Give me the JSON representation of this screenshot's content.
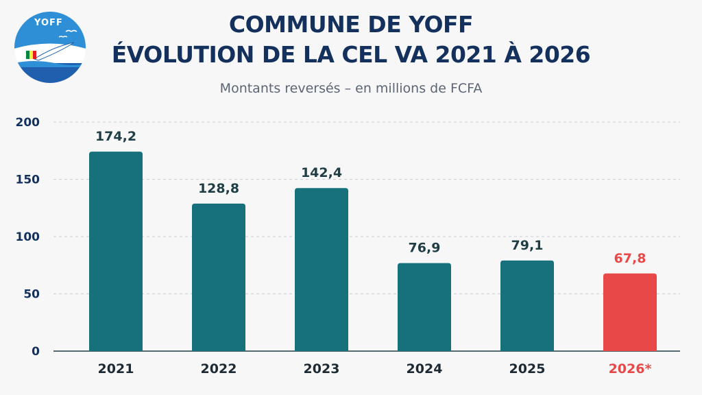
{
  "logo": {
    "text": "YOFF"
  },
  "header": {
    "title_line1": "COMMUNE DE YOFF",
    "title_line2": "ÉVOLUTION DE LA CEL VA 2021 À 2026",
    "subtitle": "Montants reversés – en millions de FCFA"
  },
  "colors": {
    "bar": "#17717d",
    "highlight": "#e94848",
    "text": "#13315c",
    "label": "#1e3d44"
  },
  "chart_data": {
    "type": "bar",
    "categories": [
      "2021",
      "2022",
      "2023",
      "2024",
      "2025",
      "2026*"
    ],
    "values": [
      174.2,
      128.8,
      142.4,
      76.9,
      79.1,
      67.8
    ],
    "value_labels": [
      "174,2",
      "128,8",
      "142,4",
      "76,9",
      "79,1",
      "67,8"
    ],
    "highlighted": [
      false,
      false,
      false,
      false,
      false,
      true
    ],
    "yticks": [
      "0",
      "50",
      "100",
      "150",
      "200"
    ],
    "ylim": [
      0,
      200
    ],
    "title": "COMMUNE DE YOFF — ÉVOLUTION DE LA CEL VA 2021 À 2026",
    "subtitle": "Montants reversés – en millions de FCFA",
    "xlabel": "",
    "ylabel": "",
    "grid": true
  }
}
